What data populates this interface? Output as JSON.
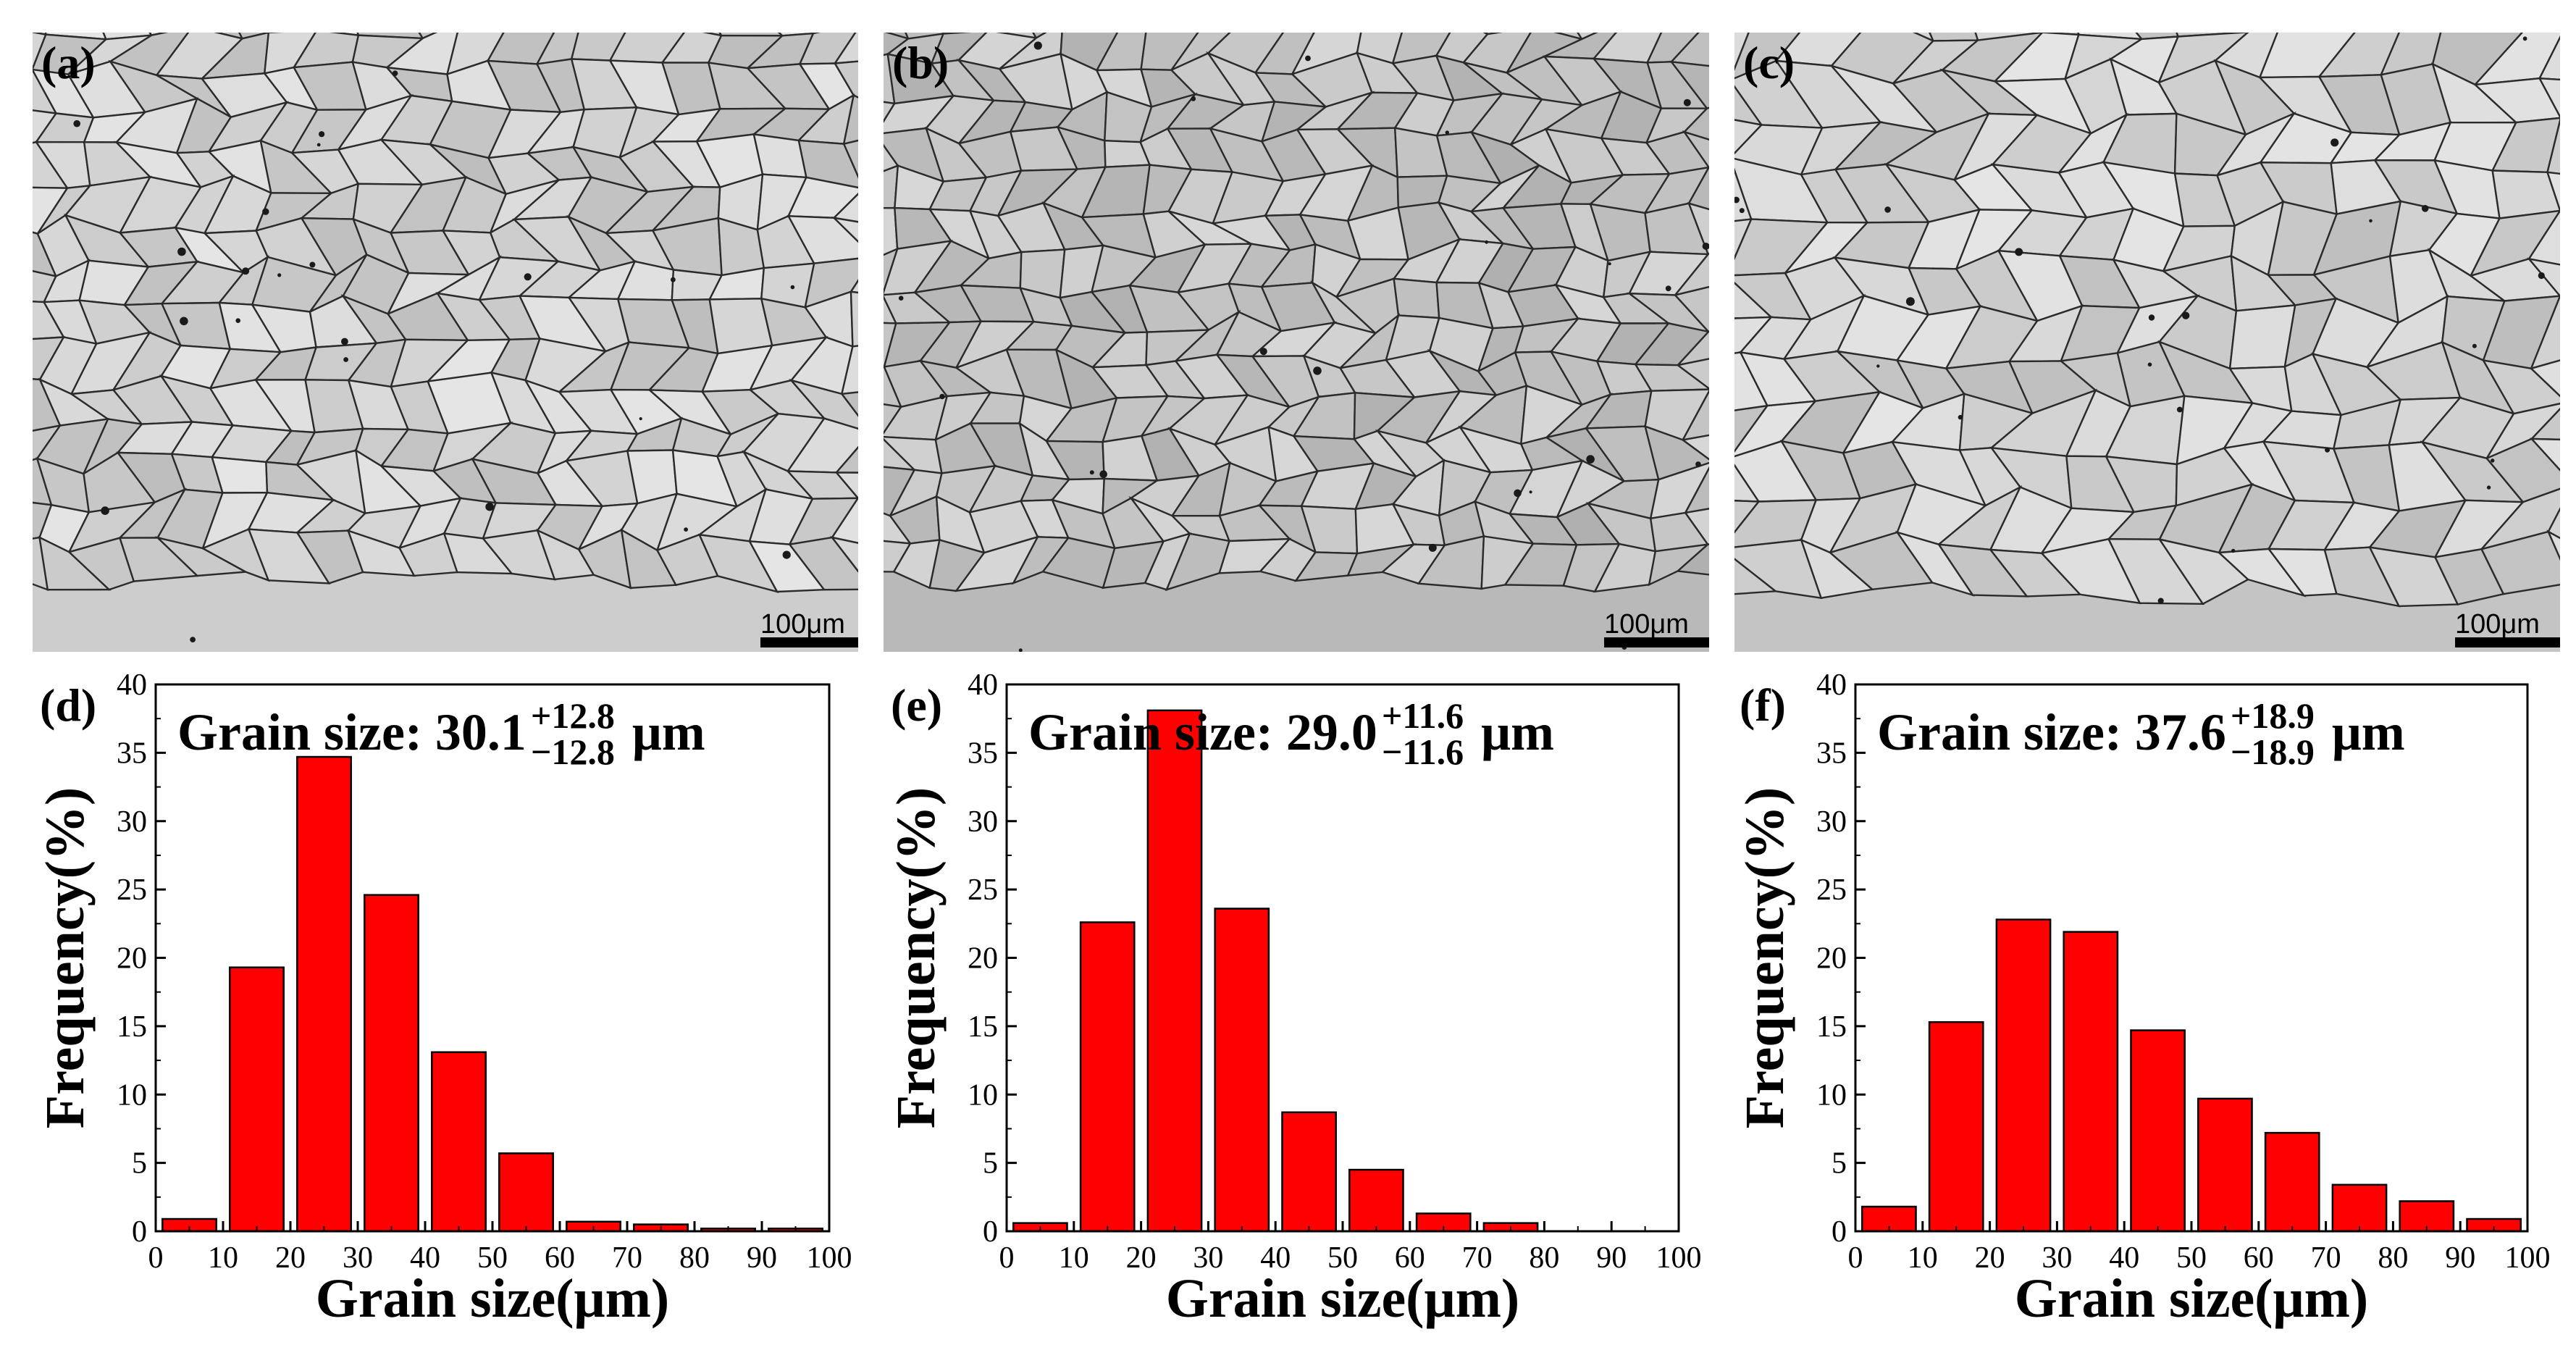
{
  "micrographs": [
    {
      "label": "(a)",
      "scale_text": "100μm",
      "tone": "#cdcdcd"
    },
    {
      "label": "(b)",
      "scale_text": "100μm",
      "tone": "#b9b9b9"
    },
    {
      "label": "(c)",
      "scale_text": "100μm",
      "tone": "#c4c4c4"
    }
  ],
  "chart_data": [
    {
      "panel": "(d)",
      "type": "bar",
      "title_prefix": "Grain size: 30.1",
      "sup": "+12.8",
      "sub": "−12.8",
      "unit": "μm",
      "xlabel": "Grain size(μm)",
      "ylabel": "Frequency(%)",
      "xlim": [
        0,
        100
      ],
      "ylim": [
        0,
        40
      ],
      "xticks": [
        0,
        10,
        20,
        30,
        40,
        50,
        60,
        70,
        80,
        90,
        100
      ],
      "yticks": [
        0,
        5,
        10,
        15,
        20,
        25,
        30,
        35,
        40
      ],
      "x": [
        5,
        15,
        25,
        35,
        45,
        55,
        65,
        75,
        85,
        95
      ],
      "values": [
        0.9,
        19.3,
        34.7,
        24.6,
        13.1,
        5.7,
        0.7,
        0.5,
        0.2,
        0.2
      ],
      "color": "#ff0000"
    },
    {
      "panel": "(e)",
      "type": "bar",
      "title_prefix": "Grain size: 29.0",
      "sup": "+11.6",
      "sub": "−11.6",
      "unit": "μm",
      "xlabel": "Grain size(μm)",
      "ylabel": "Frequency(%)",
      "xlim": [
        0,
        100
      ],
      "ylim": [
        0,
        40
      ],
      "xticks": [
        0,
        10,
        20,
        30,
        40,
        50,
        60,
        70,
        80,
        90,
        100
      ],
      "yticks": [
        0,
        5,
        10,
        15,
        20,
        25,
        30,
        35,
        40
      ],
      "x": [
        5,
        15,
        25,
        35,
        45,
        55,
        65,
        75
      ],
      "values": [
        0.6,
        22.6,
        38.1,
        23.6,
        8.7,
        4.5,
        1.3,
        0.6
      ],
      "color": "#ff0000"
    },
    {
      "panel": "(f)",
      "type": "bar",
      "title_prefix": "Grain size: 37.6",
      "sup": "+18.9",
      "sub": "−18.9",
      "unit": "μm",
      "xlabel": "Grain size(μm)",
      "ylabel": "Frequency(%)",
      "xlim": [
        0,
        100
      ],
      "ylim": [
        0,
        40
      ],
      "xticks": [
        0,
        10,
        20,
        30,
        40,
        50,
        60,
        70,
        80,
        90,
        100
      ],
      "yticks": [
        0,
        5,
        10,
        15,
        20,
        25,
        30,
        35,
        40
      ],
      "x": [
        5,
        15,
        25,
        35,
        45,
        55,
        65,
        75,
        85,
        95
      ],
      "values": [
        1.8,
        15.3,
        22.8,
        21.9,
        14.7,
        9.7,
        7.2,
        3.4,
        2.2,
        0.9
      ],
      "color": "#ff0000"
    }
  ]
}
